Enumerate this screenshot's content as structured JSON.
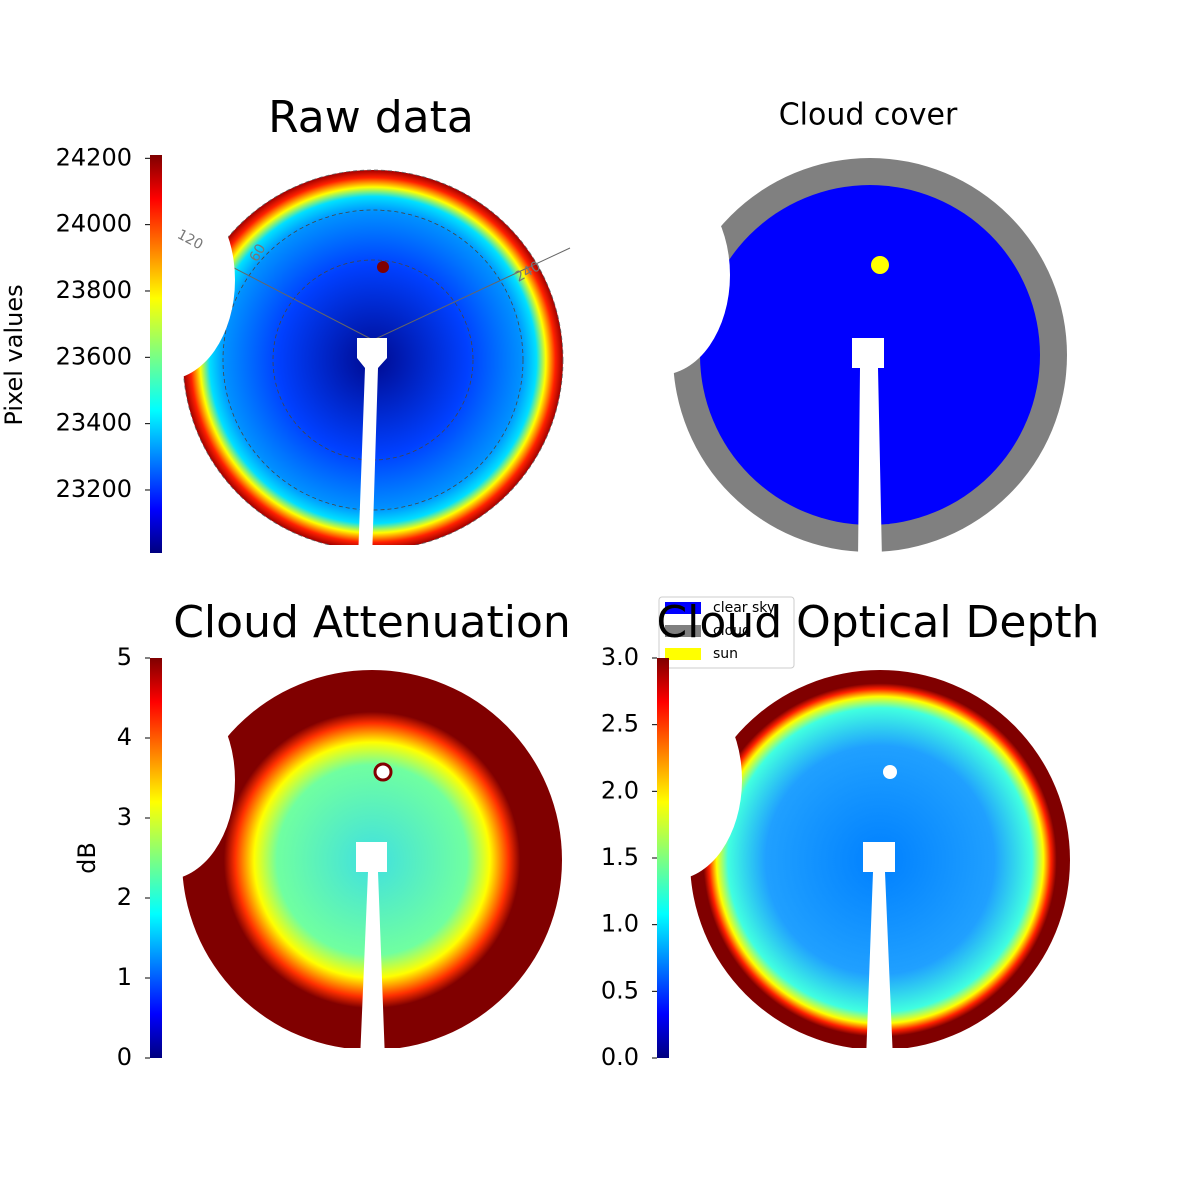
{
  "chart_data": [
    {
      "type": "image",
      "title": "Raw data",
      "colorbar_label": "Pixel values",
      "clim": [
        23010,
        24210
      ],
      "cticks": [
        23200,
        23400,
        23600,
        23800,
        24000,
        24200
      ],
      "annotations": [
        "120",
        "60",
        "240"
      ]
    },
    {
      "type": "image",
      "title": "Cloud cover",
      "series": [
        {
          "name": "clear sky",
          "color": "#0000ff"
        },
        {
          "name": "cloud",
          "color": "#808080"
        },
        {
          "name": "sun",
          "color": "#ffff00"
        }
      ]
    },
    {
      "type": "image",
      "title": "Cloud Attenuation",
      "colorbar_label": "dB",
      "clim": [
        0,
        5
      ],
      "cticks": [
        0,
        1,
        2,
        3,
        4,
        5
      ]
    },
    {
      "type": "image",
      "title": "Cloud Optical Depth",
      "clim": [
        0,
        3
      ],
      "cticks": [
        {
          "value": 0,
          "label": "0.0"
        },
        {
          "value": 0.5,
          "label": "0.5"
        },
        {
          "value": 1,
          "label": "1.0"
        },
        {
          "value": 1.5,
          "label": "1.5"
        },
        {
          "value": 2,
          "label": "2.0"
        },
        {
          "value": 2.5,
          "label": "2.5"
        },
        {
          "value": 3,
          "label": "3.0"
        }
      ]
    }
  ]
}
